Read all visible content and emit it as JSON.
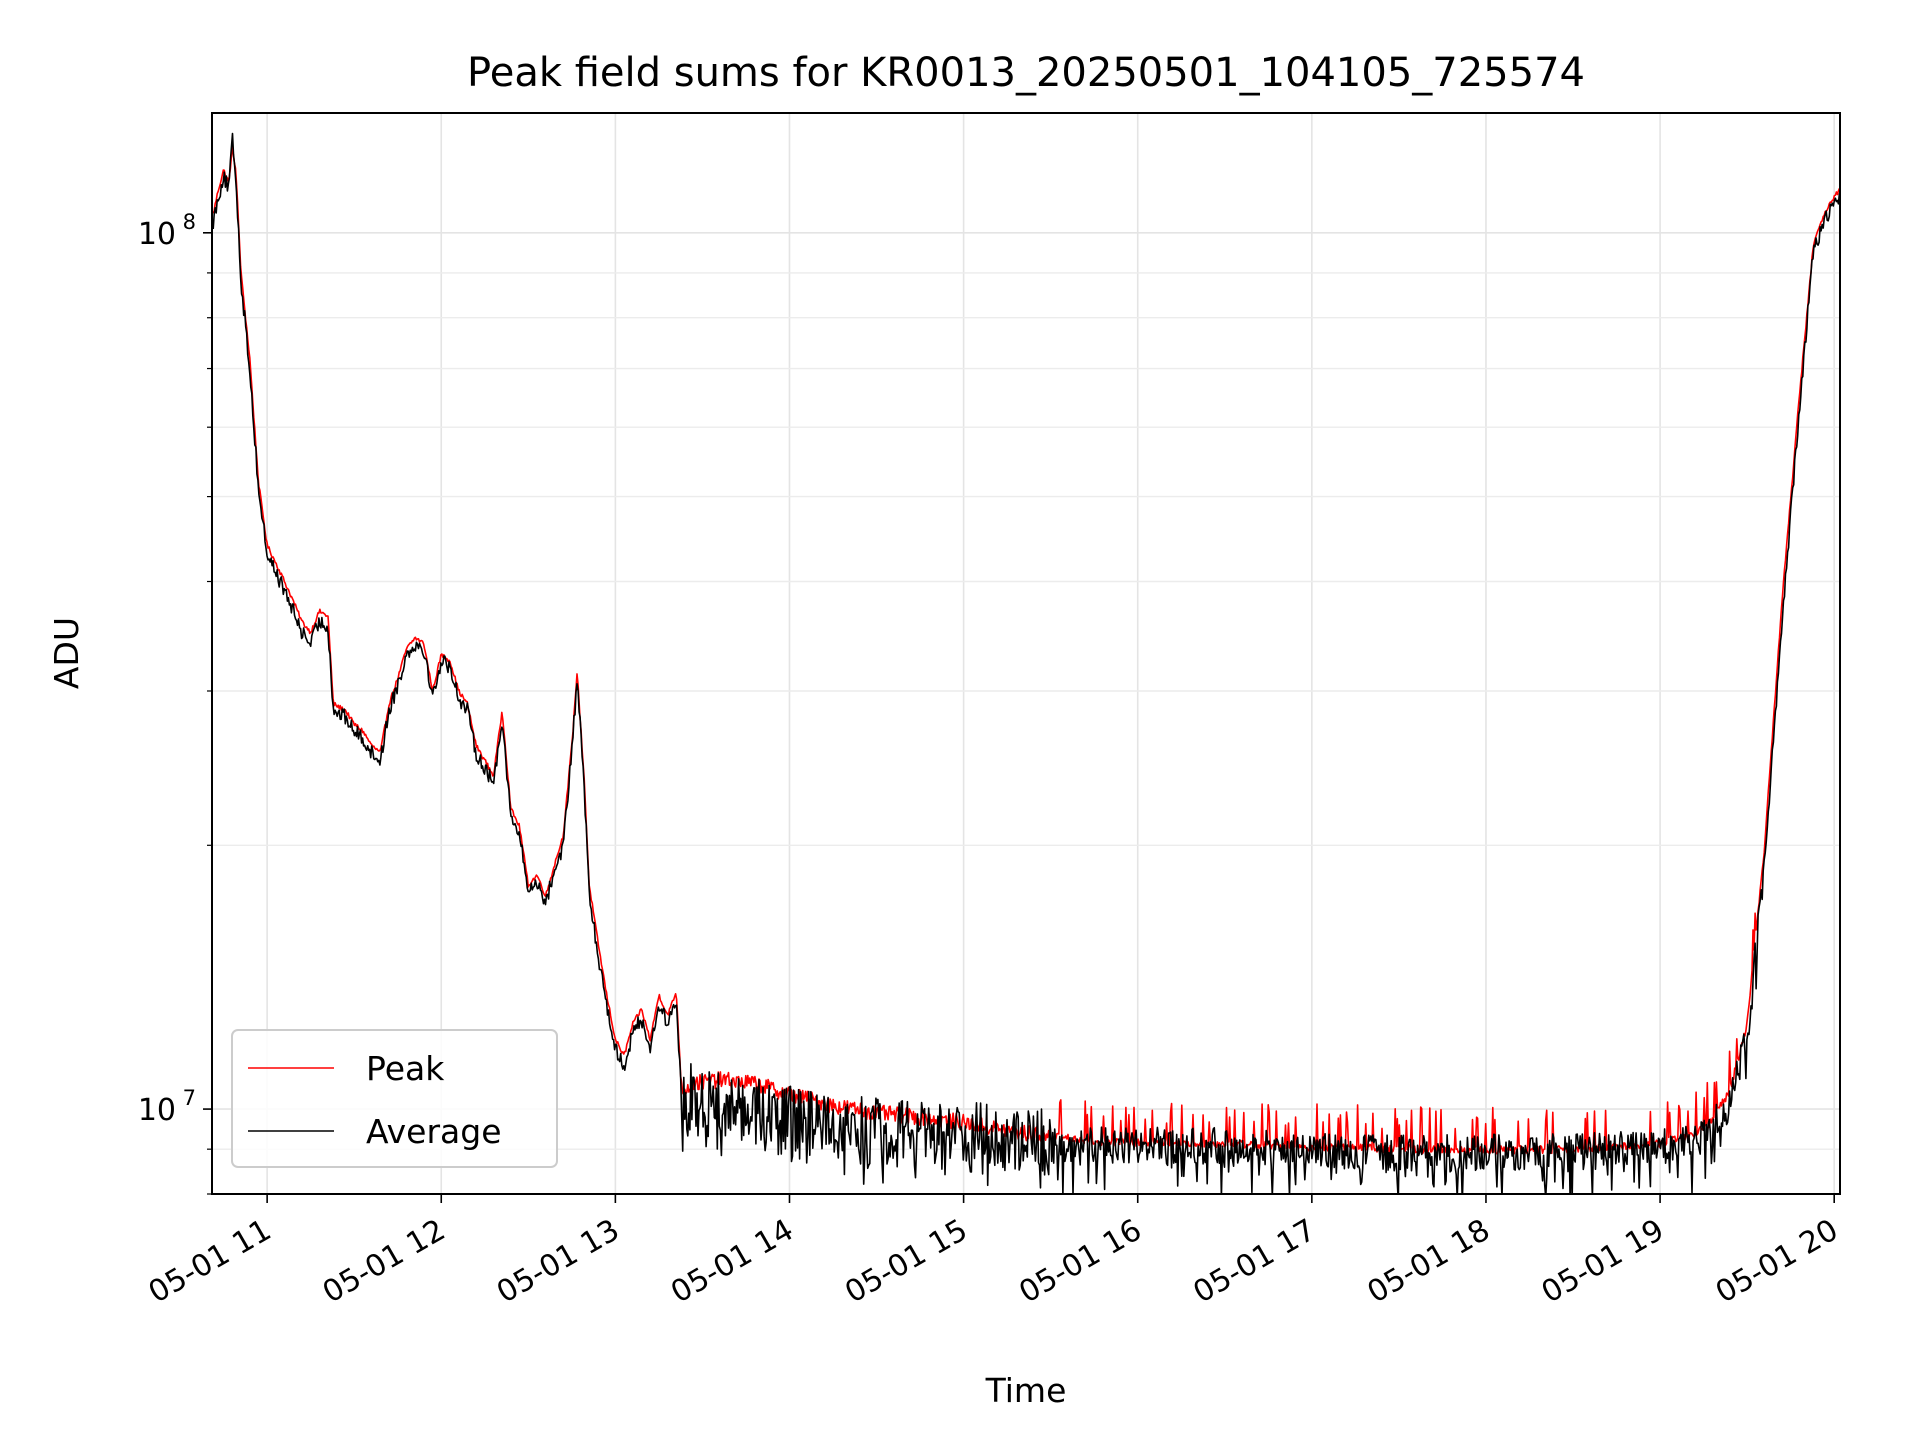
{
  "chart_data": {
    "type": "line",
    "title": "Peak field sums for KR0013_20250501_104105_725574",
    "xlabel": "Time",
    "ylabel": "ADU",
    "y_scale": "log",
    "grid": true,
    "legend": "lower-left",
    "x_tick_labels": [
      "05-01 11",
      "05-01 12",
      "05-01 13",
      "05-01 14",
      "05-01 15",
      "05-01 16",
      "05-01 17",
      "05-01 18",
      "05-01 19",
      "05-01 20"
    ],
    "xlim": [
      "05-01 10:41",
      "05-01 20:02"
    ],
    "y_tick_labels": [
      {
        "value": 10000000,
        "base": "10",
        "exp": "7"
      },
      {
        "value": 100000000,
        "base": "10",
        "exp": "8"
      }
    ],
    "ylim": [
      8000000,
      137000000
    ],
    "x_unit": "hour of 05-01",
    "series": [
      {
        "name": "Peak",
        "color": "#ff0000",
        "noise": 0.06,
        "spikes": 0.12,
        "points": [
          [
            10.69,
            105000000
          ],
          [
            10.72,
            112000000
          ],
          [
            10.75,
            118000000
          ],
          [
            10.78,
            114000000
          ],
          [
            10.8,
            125000000
          ],
          [
            10.82,
            118000000
          ],
          [
            10.85,
            90000000
          ],
          [
            10.9,
            72000000
          ],
          [
            10.95,
            52000000
          ],
          [
            11.0,
            44000000
          ],
          [
            11.05,
            42000000
          ],
          [
            11.1,
            40000000
          ],
          [
            11.15,
            38000000
          ],
          [
            11.2,
            36000000
          ],
          [
            11.25,
            35000000
          ],
          [
            11.3,
            37000000
          ],
          [
            11.35,
            36500000
          ],
          [
            11.38,
            29000000
          ],
          [
            11.45,
            28500000
          ],
          [
            11.5,
            27500000
          ],
          [
            11.55,
            27000000
          ],
          [
            11.6,
            26000000
          ],
          [
            11.65,
            25500000
          ],
          [
            11.7,
            29000000
          ],
          [
            11.75,
            31000000
          ],
          [
            11.8,
            33500000
          ],
          [
            11.85,
            34500000
          ],
          [
            11.9,
            34000000
          ],
          [
            11.95,
            30000000
          ],
          [
            12.0,
            33000000
          ],
          [
            12.05,
            32500000
          ],
          [
            12.1,
            30000000
          ],
          [
            12.15,
            29000000
          ],
          [
            12.2,
            26000000
          ],
          [
            12.25,
            25000000
          ],
          [
            12.3,
            24000000
          ],
          [
            12.35,
            28500000
          ],
          [
            12.4,
            22000000
          ],
          [
            12.45,
            21000000
          ],
          [
            12.5,
            18000000
          ],
          [
            12.55,
            18500000
          ],
          [
            12.6,
            17500000
          ],
          [
            12.65,
            19000000
          ],
          [
            12.7,
            20500000
          ],
          [
            12.75,
            26000000
          ],
          [
            12.78,
            31500000
          ],
          [
            12.82,
            24000000
          ],
          [
            12.85,
            18000000
          ],
          [
            12.9,
            15500000
          ],
          [
            12.95,
            13500000
          ],
          [
            13.0,
            12000000
          ],
          [
            13.05,
            11500000
          ],
          [
            13.1,
            12500000
          ],
          [
            13.15,
            13000000
          ],
          [
            13.2,
            12000000
          ],
          [
            13.25,
            13500000
          ],
          [
            13.3,
            12800000
          ],
          [
            13.35,
            13600000
          ],
          [
            13.38,
            10500000
          ],
          [
            13.45,
            10700000
          ],
          [
            13.6,
            10800000
          ],
          [
            13.8,
            10700000
          ],
          [
            14.0,
            10400000
          ],
          [
            14.25,
            10100000
          ],
          [
            14.5,
            9900000
          ],
          [
            14.75,
            9800000
          ],
          [
            15.0,
            9650000
          ],
          [
            15.25,
            9450000
          ],
          [
            15.5,
            9300000
          ],
          [
            15.75,
            9200000
          ],
          [
            16.0,
            9150000
          ],
          [
            16.3,
            9150000
          ],
          [
            16.6,
            9130000
          ],
          [
            17.0,
            9050000
          ],
          [
            17.3,
            9020000
          ],
          [
            17.6,
            9000000
          ],
          [
            18.0,
            8980000
          ],
          [
            18.5,
            9000000
          ],
          [
            19.0,
            9150000
          ],
          [
            19.2,
            9350000
          ],
          [
            19.3,
            9700000
          ],
          [
            19.4,
            10500000
          ],
          [
            19.5,
            12500000
          ],
          [
            19.6,
            20000000
          ],
          [
            19.7,
            38000000
          ],
          [
            19.8,
            65000000
          ],
          [
            19.88,
            97000000
          ],
          [
            19.95,
            106000000
          ],
          [
            20.03,
            112000000
          ]
        ]
      },
      {
        "name": "Average",
        "color": "#000000",
        "noise": 0.08,
        "spikes": 0,
        "points": [
          [
            10.69,
            103000000
          ],
          [
            10.72,
            110000000
          ],
          [
            10.75,
            116000000
          ],
          [
            10.78,
            112000000
          ],
          [
            10.8,
            128000000
          ],
          [
            10.82,
            116000000
          ],
          [
            10.85,
            88000000
          ],
          [
            10.9,
            70000000
          ],
          [
            10.95,
            51000000
          ],
          [
            11.0,
            43000000
          ],
          [
            11.05,
            41000000
          ],
          [
            11.1,
            39000000
          ],
          [
            11.15,
            37000000
          ],
          [
            11.2,
            35000000
          ],
          [
            11.25,
            34000000
          ],
          [
            11.3,
            36000000
          ],
          [
            11.35,
            35500000
          ],
          [
            11.38,
            28500000
          ],
          [
            11.45,
            28000000
          ],
          [
            11.5,
            27000000
          ],
          [
            11.55,
            26500000
          ],
          [
            11.6,
            25500000
          ],
          [
            11.65,
            25000000
          ],
          [
            11.7,
            28500000
          ],
          [
            11.75,
            30500000
          ],
          [
            11.8,
            33000000
          ],
          [
            11.85,
            34000000
          ],
          [
            11.9,
            33500000
          ],
          [
            11.95,
            29500000
          ],
          [
            12.0,
            32500000
          ],
          [
            12.05,
            32000000
          ],
          [
            12.1,
            29500000
          ],
          [
            12.15,
            28500000
          ],
          [
            12.2,
            25500000
          ],
          [
            12.25,
            24500000
          ],
          [
            12.3,
            23500000
          ],
          [
            12.35,
            28000000
          ],
          [
            12.4,
            21500000
          ],
          [
            12.45,
            20500000
          ],
          [
            12.5,
            17700000
          ],
          [
            12.55,
            18200000
          ],
          [
            12.6,
            17200000
          ],
          [
            12.65,
            18700000
          ],
          [
            12.7,
            20000000
          ],
          [
            12.75,
            25500000
          ],
          [
            12.78,
            31000000
          ],
          [
            12.82,
            23500000
          ],
          [
            12.85,
            17500000
          ],
          [
            12.9,
            15000000
          ],
          [
            12.95,
            13200000
          ],
          [
            13.0,
            11700000
          ],
          [
            13.05,
            11200000
          ],
          [
            13.1,
            12200000
          ],
          [
            13.15,
            12700000
          ],
          [
            13.2,
            11700000
          ],
          [
            13.25,
            13200000
          ],
          [
            13.3,
            12500000
          ],
          [
            13.35,
            13300000
          ],
          [
            13.38,
            10200000
          ],
          [
            13.45,
            10300000
          ],
          [
            13.6,
            10200000
          ],
          [
            13.8,
            10000000
          ],
          [
            14.0,
            9700000
          ],
          [
            14.25,
            9500000
          ],
          [
            14.5,
            9400000
          ],
          [
            14.75,
            9400000
          ],
          [
            15.0,
            9350000
          ],
          [
            15.25,
            9250000
          ],
          [
            15.5,
            9150000
          ],
          [
            15.75,
            9100000
          ],
          [
            16.0,
            9100000
          ],
          [
            16.3,
            9100000
          ],
          [
            16.6,
            9080000
          ],
          [
            17.0,
            9000000
          ],
          [
            17.3,
            8950000
          ],
          [
            17.6,
            8920000
          ],
          [
            18.0,
            8930000
          ],
          [
            18.5,
            8950000
          ],
          [
            19.0,
            9050000
          ],
          [
            19.2,
            9200000
          ],
          [
            19.3,
            9500000
          ],
          [
            19.4,
            10200000
          ],
          [
            19.5,
            12000000
          ],
          [
            19.6,
            19000000
          ],
          [
            19.7,
            36000000
          ],
          [
            19.8,
            63000000
          ],
          [
            19.88,
            95000000
          ],
          [
            19.95,
            104000000
          ],
          [
            20.03,
            110000000
          ]
        ]
      }
    ]
  }
}
